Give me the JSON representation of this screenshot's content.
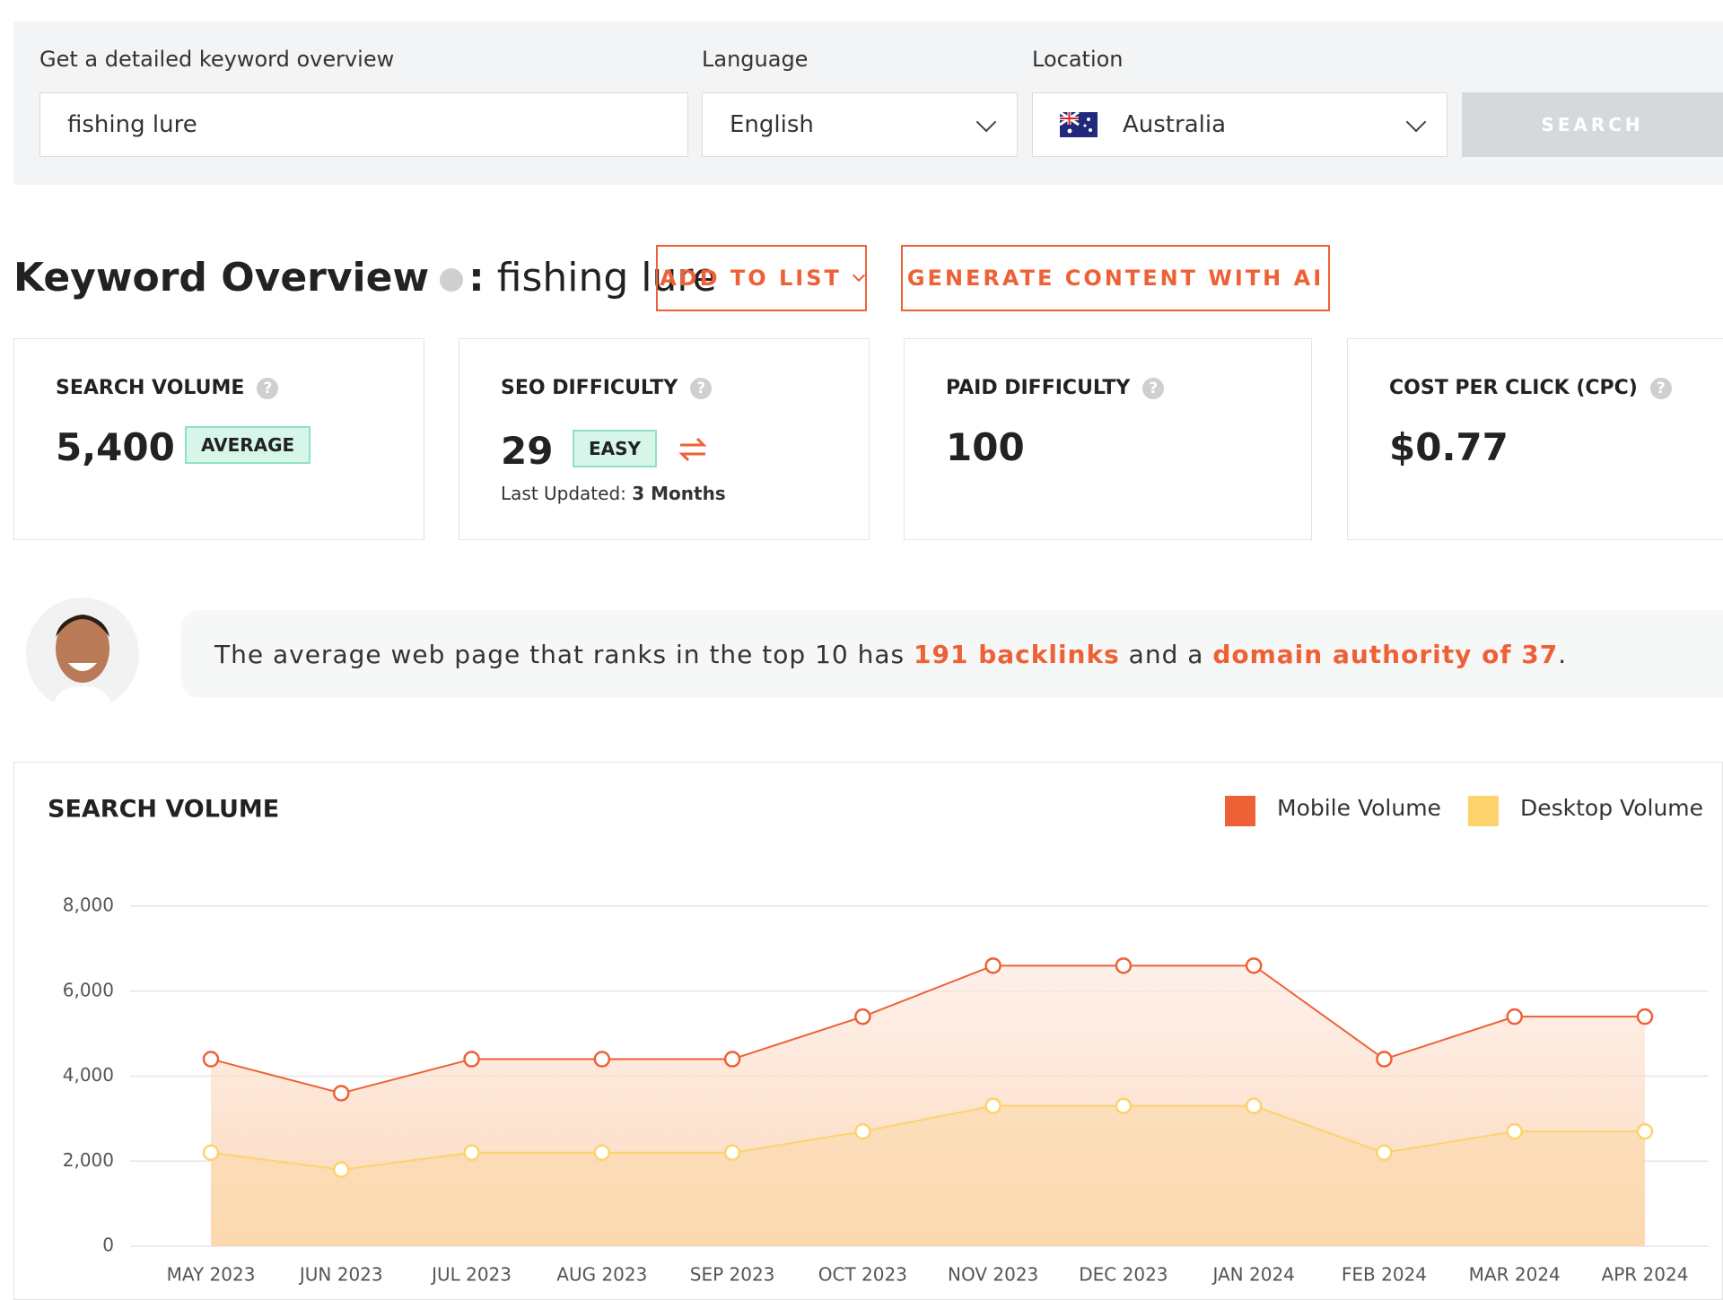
{
  "search_form": {
    "prompt": "Get a detailed keyword overview",
    "keyword": "fishing lure",
    "language_label": "Language",
    "language": "English",
    "location_label": "Location",
    "location": "Australia",
    "button": "SEARCH"
  },
  "overview": {
    "title": "Keyword Overview",
    "separator": ":",
    "keyword": "fishing lure",
    "buttons": [
      "ADD TO LIST",
      "GENERATE CONTENT WITH AI"
    ]
  },
  "metrics": [
    {
      "label": "SEARCH VOLUME",
      "value": "5,400",
      "badge": "AVERAGE"
    },
    {
      "label": "SEO DIFFICULTY",
      "value": "29",
      "badge": "EASY",
      "updated_label": "Last Updated:",
      "updated": "3 Months"
    },
    {
      "label": "PAID DIFFICULTY",
      "value": "100"
    },
    {
      "label": "COST PER CLICK (CPC)",
      "value": "$0.77"
    }
  ],
  "insight": {
    "parts": [
      {
        "text": "The average web page that ranks in the top 10 has ",
        "highlight": false
      },
      {
        "text": "191 backlinks",
        "highlight": true
      },
      {
        "text": " and a ",
        "highlight": false
      },
      {
        "text": "domain authority of 37",
        "highlight": true
      },
      {
        "text": ".",
        "highlight": false
      }
    ]
  },
  "chart_data": {
    "type": "line",
    "title": "SEARCH VOLUME",
    "categories": [
      "MAY 2023",
      "JUN 2023",
      "JUL 2023",
      "AUG 2023",
      "SEP 2023",
      "OCT 2023",
      "NOV 2023",
      "DEC 2023",
      "JAN 2024",
      "FEB 2024",
      "MAR 2024",
      "APR 2024"
    ],
    "series": [
      {
        "name": "Mobile Volume",
        "color": "#ee6136",
        "values": [
          4400,
          3600,
          4400,
          4400,
          4400,
          5400,
          6600,
          6600,
          6600,
          4400,
          5400,
          5400
        ]
      },
      {
        "name": "Desktop Volume",
        "color": "#fcd36c",
        "values": [
          2200,
          1800,
          2200,
          2200,
          2200,
          2700,
          3300,
          3300,
          3300,
          2200,
          2700,
          2700
        ]
      }
    ],
    "ylim": [
      0,
      8000
    ],
    "yticks": [
      0,
      {
        "value": 2000,
        "label": "2,000"
      },
      {
        "value": 4000,
        "label": "4,000"
      },
      {
        "value": 6000,
        "label": "6,000"
      },
      {
        "value": 8000,
        "label": "8,000"
      }
    ],
    "grid": true,
    "legend": "top-right"
  }
}
